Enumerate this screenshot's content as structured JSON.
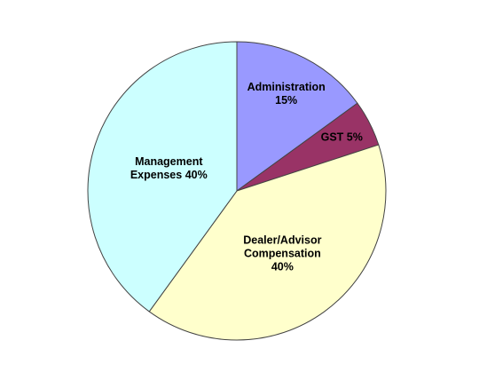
{
  "chart_data": {
    "type": "pie",
    "categories": [
      "Administration",
      "GST",
      "Dealer/Advisor Compensation",
      "Management Expenses"
    ],
    "values": [
      15,
      5,
      40,
      40
    ],
    "value_labels": [
      "15%",
      "5%",
      "40%",
      "40%"
    ],
    "colors": [
      "#9999ff",
      "#993366",
      "#ffffcc",
      "#ccffff"
    ],
    "start_angle": 0,
    "direction": "clockwise"
  }
}
